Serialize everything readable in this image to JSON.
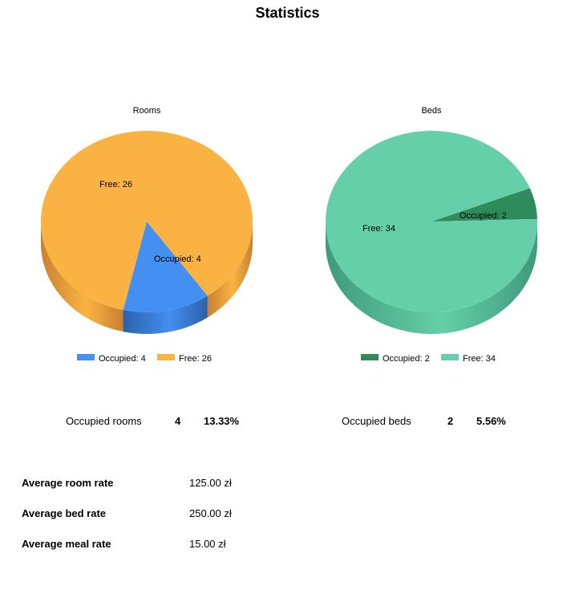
{
  "page": {
    "title": "Statistics"
  },
  "chart_data": [
    {
      "type": "pie",
      "title": "Rooms",
      "slices": [
        {
          "name": "Occupied",
          "value": 4,
          "label": "Occupied: 4",
          "color": "#438ff2",
          "dark": "#2c61a9"
        },
        {
          "name": "Free",
          "value": 26,
          "label": "Free: 26",
          "color": "#fab342",
          "dark": "#c9812f"
        }
      ],
      "legend": [
        "Occupied: 4",
        "Free: 26"
      ],
      "legend_position": "bottom"
    },
    {
      "type": "pie",
      "title": "Beds",
      "slices": [
        {
          "name": "Occupied",
          "value": 2,
          "label": "Occupied: 2",
          "color": "#2e8b5c",
          "dark": "#1d5a3b"
        },
        {
          "name": "Free",
          "value": 34,
          "label": "Free: 34",
          "color": "#64cfa9",
          "dark": "#3e9a7b"
        }
      ],
      "legend": [
        "Occupied: 2",
        "Free: 34"
      ],
      "legend_position": "bottom"
    }
  ],
  "summary": {
    "rooms": {
      "label": "Occupied rooms",
      "count": "4",
      "percent": "13.33%"
    },
    "beds": {
      "label": "Occupied beds",
      "count": "2",
      "percent": "5.56%"
    }
  },
  "rates": [
    {
      "label": "Average room rate",
      "value": "125.00 zł"
    },
    {
      "label": "Average bed rate",
      "value": "250.00 zł"
    },
    {
      "label": "Average meal rate",
      "value": "15.00 zł"
    }
  ]
}
